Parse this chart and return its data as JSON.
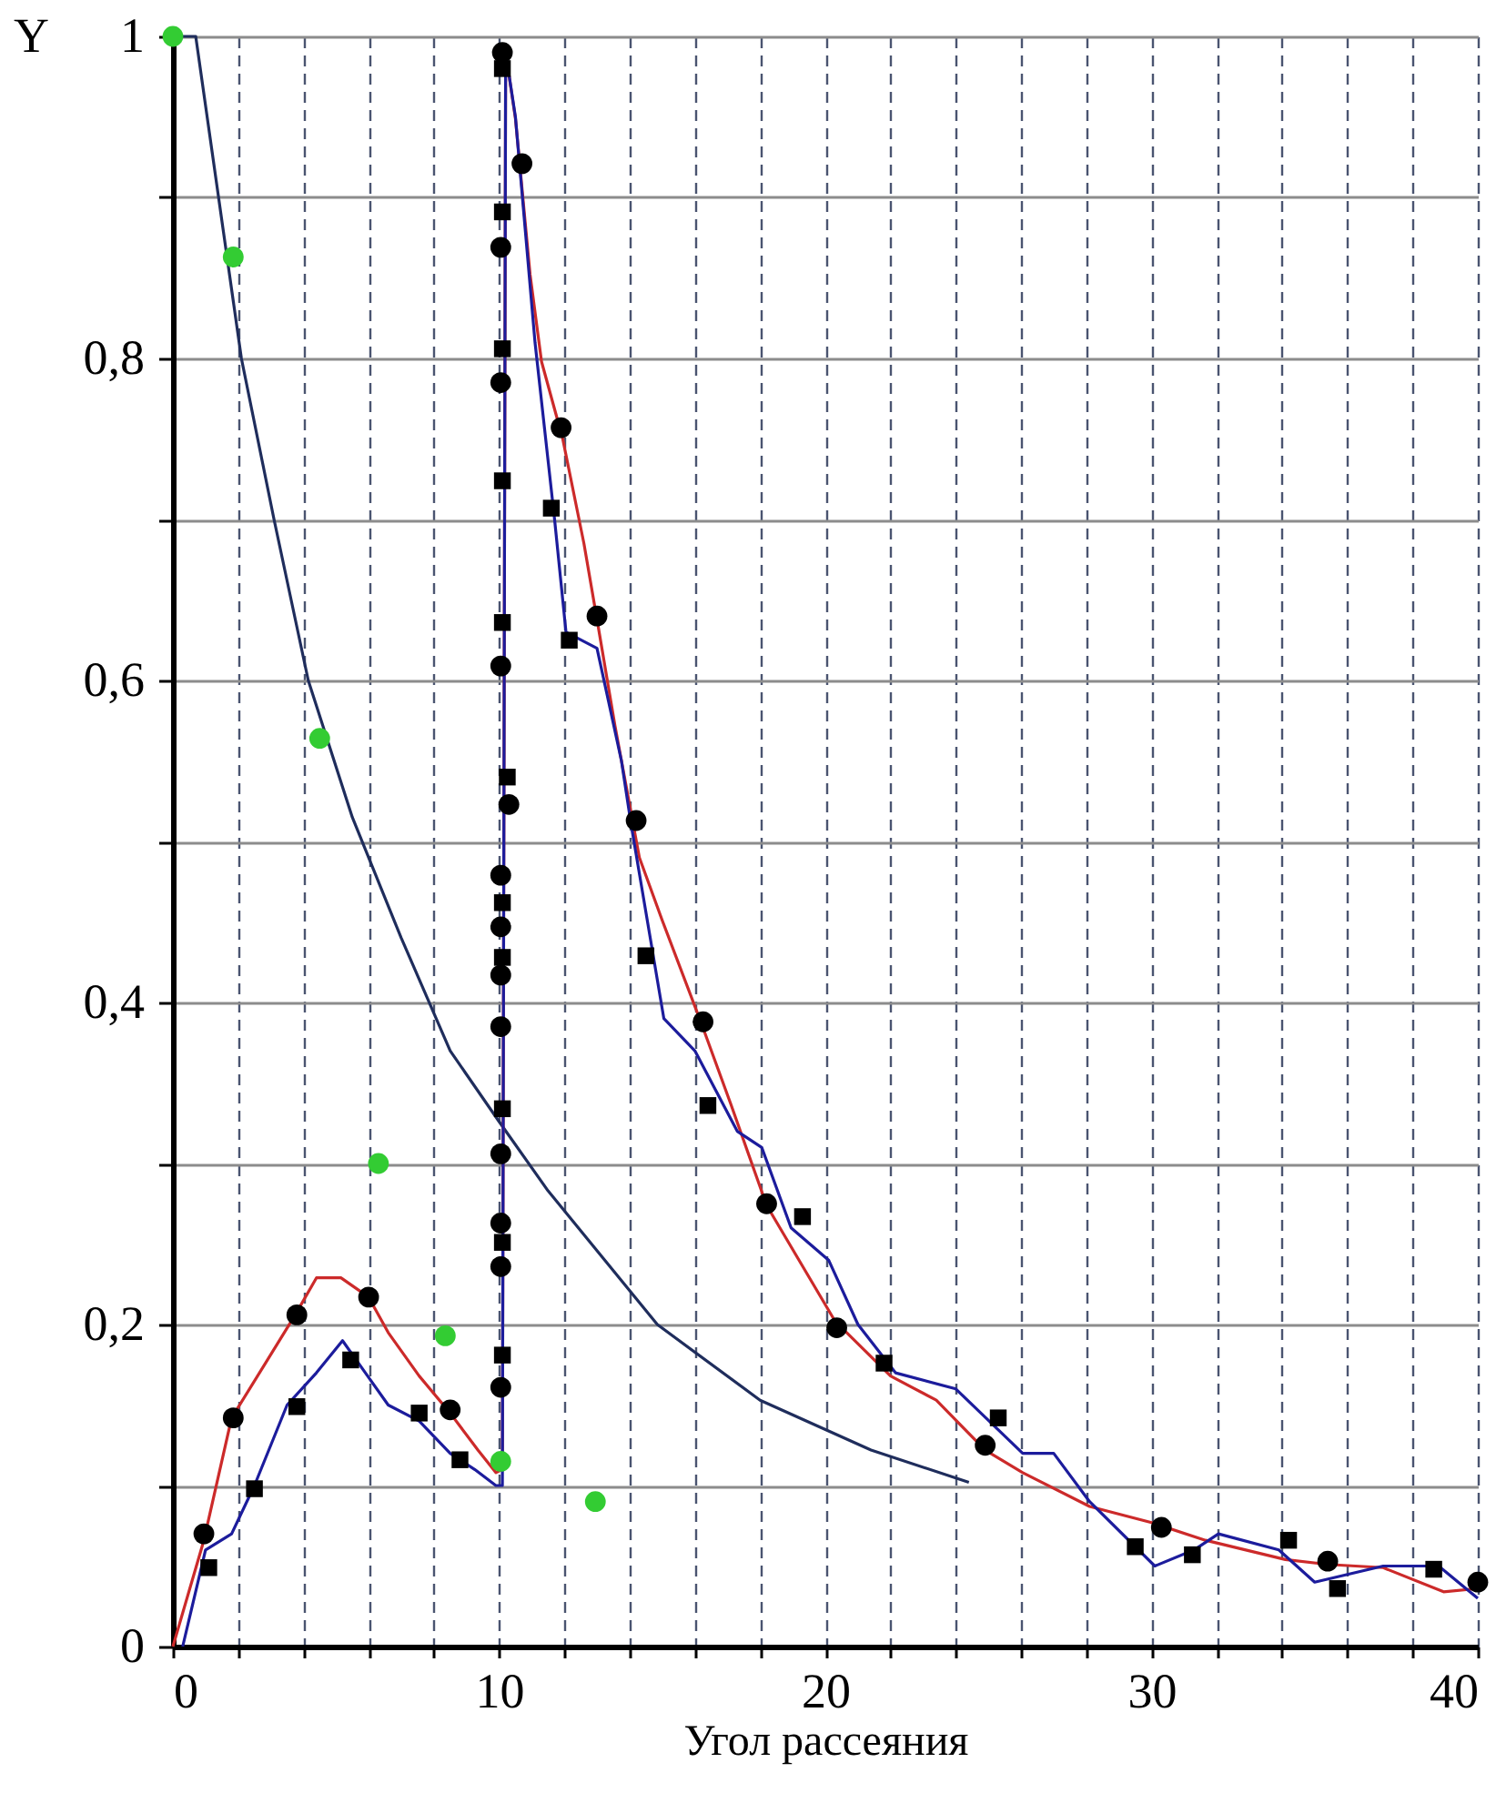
{
  "chart_data": {
    "type": "line",
    "xlabel": "Угол рассеяния",
    "ylabel": "Y",
    "xlim": [
      0,
      40
    ],
    "ylim": [
      0,
      1
    ],
    "xticks": [
      0,
      {
        "value": 2,
        "label": null
      },
      {
        "value": 4,
        "label": null
      },
      {
        "value": 6,
        "label": null
      },
      {
        "value": 8,
        "label": null
      },
      10,
      {
        "value": 12,
        "label": null
      },
      {
        "value": 14,
        "label": null
      },
      {
        "value": 16,
        "label": null
      },
      {
        "value": 18,
        "label": null
      },
      20,
      {
        "value": 22,
        "label": null
      },
      {
        "value": 24,
        "label": null
      },
      {
        "value": 26,
        "label": null
      },
      {
        "value": 28,
        "label": null
      },
      30,
      {
        "value": 32,
        "label": null
      },
      {
        "value": 34,
        "label": null
      },
      {
        "value": 36,
        "label": null
      },
      {
        "value": 38,
        "label": null
      },
      40
    ],
    "yticks": [
      0,
      {
        "value": 0.1,
        "label": null
      },
      {
        "value": 0.2,
        "label": "0,2"
      },
      {
        "value": 0.3,
        "label": null
      },
      {
        "value": 0.4,
        "label": "0,4"
      },
      {
        "value": 0.5,
        "label": null
      },
      {
        "value": 0.6,
        "label": "0,6"
      },
      {
        "value": 0.7,
        "label": null
      },
      {
        "value": 0.8,
        "label": "0,8"
      },
      {
        "value": 0.9,
        "label": null
      },
      1
    ],
    "grid": true,
    "series": [
      {
        "color": "#1f2d5c",
        "x": [
          0,
          0.7,
          1.4,
          2.1,
          3.1,
          4.15,
          5.5,
          7,
          8.5,
          10,
          11.5,
          14.85,
          18,
          21.4,
          24.4
        ],
        "values": [
          1,
          1,
          0.9,
          0.8,
          0.7,
          0.6,
          0.515,
          0.44,
          0.37,
          0.326,
          0.283,
          0.2,
          0.153,
          0.122,
          0.102
        ]
      },
      {
        "color": "#cc2a2a",
        "x": [
          0,
          0.95,
          1.8,
          2.9,
          3.75,
          4.4,
          5.15,
          6.0,
          6.6,
          7.55,
          8.5,
          9.35,
          9.9,
          10.1,
          10.2,
          10.5,
          10.95,
          11.3,
          11.95,
          12.6,
          13.05,
          13.55,
          14.3,
          15.0,
          16.2,
          17.1,
          18.2,
          20.3,
          22.0,
          23.4,
          24.9,
          26.05,
          28.1,
          30.0,
          31.65,
          34.1,
          35.4,
          37.1,
          38.95,
          40
        ],
        "values": [
          0,
          0.066,
          0.142,
          0.178,
          0.206,
          0.229,
          0.229,
          0.217,
          0.195,
          0.168,
          0.145,
          0.122,
          0.108,
          0.11,
          0.99,
          0.949,
          0.852,
          0.798,
          0.75,
          0.685,
          0.632,
          0.572,
          0.49,
          0.451,
          0.387,
          0.337,
          0.274,
          0.202,
          0.168,
          0.153,
          0.122,
          0.108,
          0.087,
          0.077,
          0.066,
          0.054,
          0.051,
          0.049,
          0.034,
          0.036
        ]
      },
      {
        "color": "#1c1c9c",
        "x": [
          0.3,
          1.0,
          1.8,
          2.5,
          3.5,
          4.4,
          5.2,
          5.9,
          6.6,
          7.55,
          8.5,
          9.25,
          9.9,
          10.1,
          10.2,
          10.5,
          11.1,
          11.7,
          12.05,
          13.0,
          13.75,
          14.05,
          15.05,
          16.0,
          17.3,
          18.05,
          18.95,
          20.1,
          21.0,
          22.15,
          24.0,
          26.05,
          27.0,
          28.1,
          30.1,
          31.3,
          32.05,
          33.9,
          35.0,
          37.1,
          38.8,
          40
        ],
        "values": [
          0,
          0.06,
          0.07,
          0.1,
          0.15,
          0.17,
          0.19,
          0.17,
          0.15,
          0.14,
          0.12,
          0.11,
          0.1,
          0.1,
          0.99,
          0.95,
          0.81,
          0.7,
          0.63,
          0.62,
          0.55,
          0.51,
          0.39,
          0.37,
          0.32,
          0.31,
          0.26,
          0.24,
          0.2,
          0.17,
          0.16,
          0.12,
          0.12,
          0.09,
          0.05,
          0.06,
          0.07,
          0.06,
          0.04,
          0.05,
          0.05,
          0.03
        ]
      },
      {
        "type": "scatter",
        "marker": "circle",
        "color": "#33cc33",
        "x": [
          0,
          1.85,
          4.5,
          6.3,
          8.35,
          10.05,
          12.95
        ],
        "values": [
          1,
          0.863,
          0.564,
          0.3,
          0.193,
          0.115,
          0.09
        ]
      },
      {
        "type": "scatter",
        "marker": "circle",
        "color": "#000000",
        "x": [
          0.95,
          1.85,
          3.8,
          6.0,
          8.5,
          10.05,
          10.05,
          10.05,
          10.05,
          10.05,
          10.05,
          10.05,
          10.05,
          10.3,
          10.05,
          10.05,
          10.05,
          10.1,
          10.7,
          11.9,
          13.0,
          14.2,
          16.25,
          18.2,
          20.35,
          24.9,
          30.3,
          35.4,
          40
        ],
        "values": [
          0.07,
          0.142,
          0.206,
          0.217,
          0.147,
          0.161,
          0.236,
          0.263,
          0.306,
          0.385,
          0.417,
          0.447,
          0.479,
          0.523,
          0.609,
          0.785,
          0.869,
          0.99,
          0.921,
          0.757,
          0.64,
          0.513,
          0.388,
          0.275,
          0.198,
          0.125,
          0.074,
          0.053,
          0.04
        ]
      },
      {
        "type": "scatter",
        "marker": "square",
        "color": "#000000",
        "x": [
          1.1,
          2.5,
          3.8,
          5.45,
          7.55,
          8.8,
          10.1,
          10.1,
          10.1,
          10.1,
          10.1,
          10.25,
          10.1,
          10.1,
          10.1,
          10.1,
          10.1,
          11.6,
          12.15,
          14.5,
          16.4,
          19.3,
          21.8,
          25.3,
          29.5,
          31.25,
          34.2,
          35.7,
          38.65
        ],
        "values": [
          0.049,
          0.098,
          0.149,
          0.178,
          0.145,
          0.116,
          0.181,
          0.251,
          0.334,
          0.428,
          0.462,
          0.54,
          0.636,
          0.724,
          0.806,
          0.891,
          0.98,
          0.707,
          0.625,
          0.429,
          0.336,
          0.267,
          0.176,
          0.142,
          0.062,
          0.057,
          0.066,
          0.036,
          0.048
        ]
      }
    ]
  }
}
